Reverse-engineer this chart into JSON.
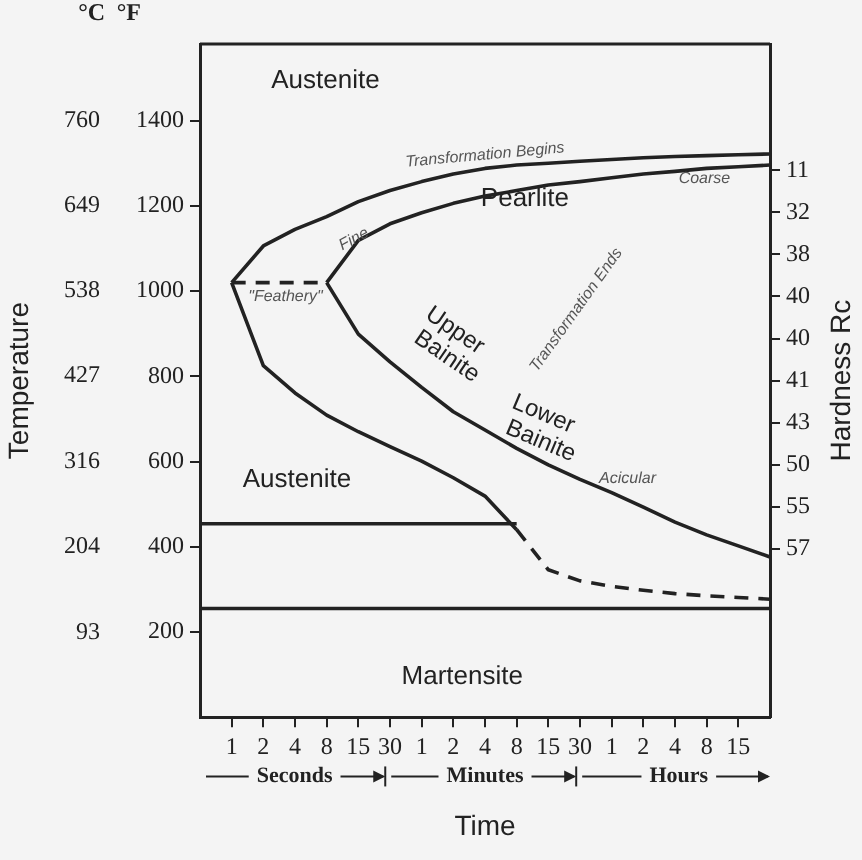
{
  "chart_data": {
    "type": "line",
    "ylabel": "Temperature",
    "xlabel": "Time",
    "y2label": "Hardness Rc",
    "grid": false,
    "legend": false,
    "marker": "none",
    "categories": [
      null,
      "1",
      "2",
      "4",
      "8",
      "15",
      "30",
      "1",
      "2",
      "4",
      "8",
      "15",
      "30",
      "1",
      "2",
      "4",
      "8",
      "15",
      null
    ],
    "ylim": [
      0,
      1580
    ],
    "yticks": [
      200,
      400,
      600,
      800,
      1000,
      1200,
      1400
    ],
    "y3lim": [
      -17.8,
      860
    ],
    "y3ticks": [
      93,
      204,
      316,
      427,
      538,
      649,
      760
    ],
    "y2_categories": [
      null,
      null,
      null,
      "11",
      "32",
      "38",
      "40",
      "40",
      "41",
      "43",
      "50",
      "55",
      "57",
      null,
      null,
      null,
      null
    ],
    "series": [
      {
        "color": "#222222",
        "line_style": "solid",
        "values": [
          null,
          1020,
          1106,
          1145,
          1175,
          1210,
          1236,
          1257,
          1275,
          1288,
          1296,
          1300,
          1305,
          1309,
          1313,
          1316,
          1318,
          1320,
          1322
        ]
      },
      {
        "color": "#222222",
        "line_style": "solid",
        "values": [
          null,
          1020,
          825,
          761,
          709,
          670,
          635,
          601,
          562,
          519,
          440,
          null,
          null,
          null,
          null,
          null,
          null,
          null,
          null
        ]
      },
      {
        "color": "#222222",
        "line_style": "dashed",
        "values": [
          null,
          null,
          null,
          null,
          null,
          null,
          null,
          null,
          null,
          null,
          440,
          346,
          320,
          307,
          298,
          290,
          285,
          281,
          277
        ]
      },
      {
        "color": "#222222",
        "line_style": "solid",
        "values": [
          null,
          null,
          null,
          null,
          1020,
          1119,
          1158,
          1184,
          1206,
          1223,
          1236,
          1249,
          1257,
          1266,
          1275,
          1281,
          1288,
          1292,
          1296
        ]
      },
      {
        "color": "#222222",
        "line_style": "solid",
        "values": [
          null,
          null,
          null,
          null,
          1020,
          899,
          834,
          774,
          717,
          674,
          631,
          592,
          558,
          527,
          493,
          458,
          428,
          402,
          376
        ]
      },
      {
        "color": "#222222",
        "line_style": "dashed",
        "values": [
          null,
          1020,
          1020,
          1020,
          1020,
          null,
          null,
          null,
          null,
          null,
          null,
          null,
          null,
          null,
          null,
          null,
          null,
          null,
          null
        ]
      },
      {
        "color": "#222222",
        "line_style": "solid",
        "values": [
          454,
          454,
          454,
          454,
          454,
          454,
          454,
          454,
          454,
          454,
          454,
          null,
          null,
          null,
          null,
          null,
          null,
          null,
          null
        ]
      },
      {
        "color": "#222222",
        "line_style": "solid",
        "values": [
          255,
          255,
          255,
          255,
          255,
          255,
          255,
          255,
          255,
          255,
          255,
          255,
          255,
          255,
          255,
          255,
          255,
          255,
          255
        ]
      }
    ],
    "annotations": [
      "°C",
      "°F",
      "Austenite",
      "Transformation Begins",
      "Pearlite",
      "Coarse",
      "Fine",
      "\"Feathery\"",
      "Upper Bainite",
      "Transformation Ends",
      "Lower Bainite",
      "Acicular",
      "Austenite",
      "Martensite",
      "Seconds",
      "Minutes",
      "Hours"
    ]
  }
}
